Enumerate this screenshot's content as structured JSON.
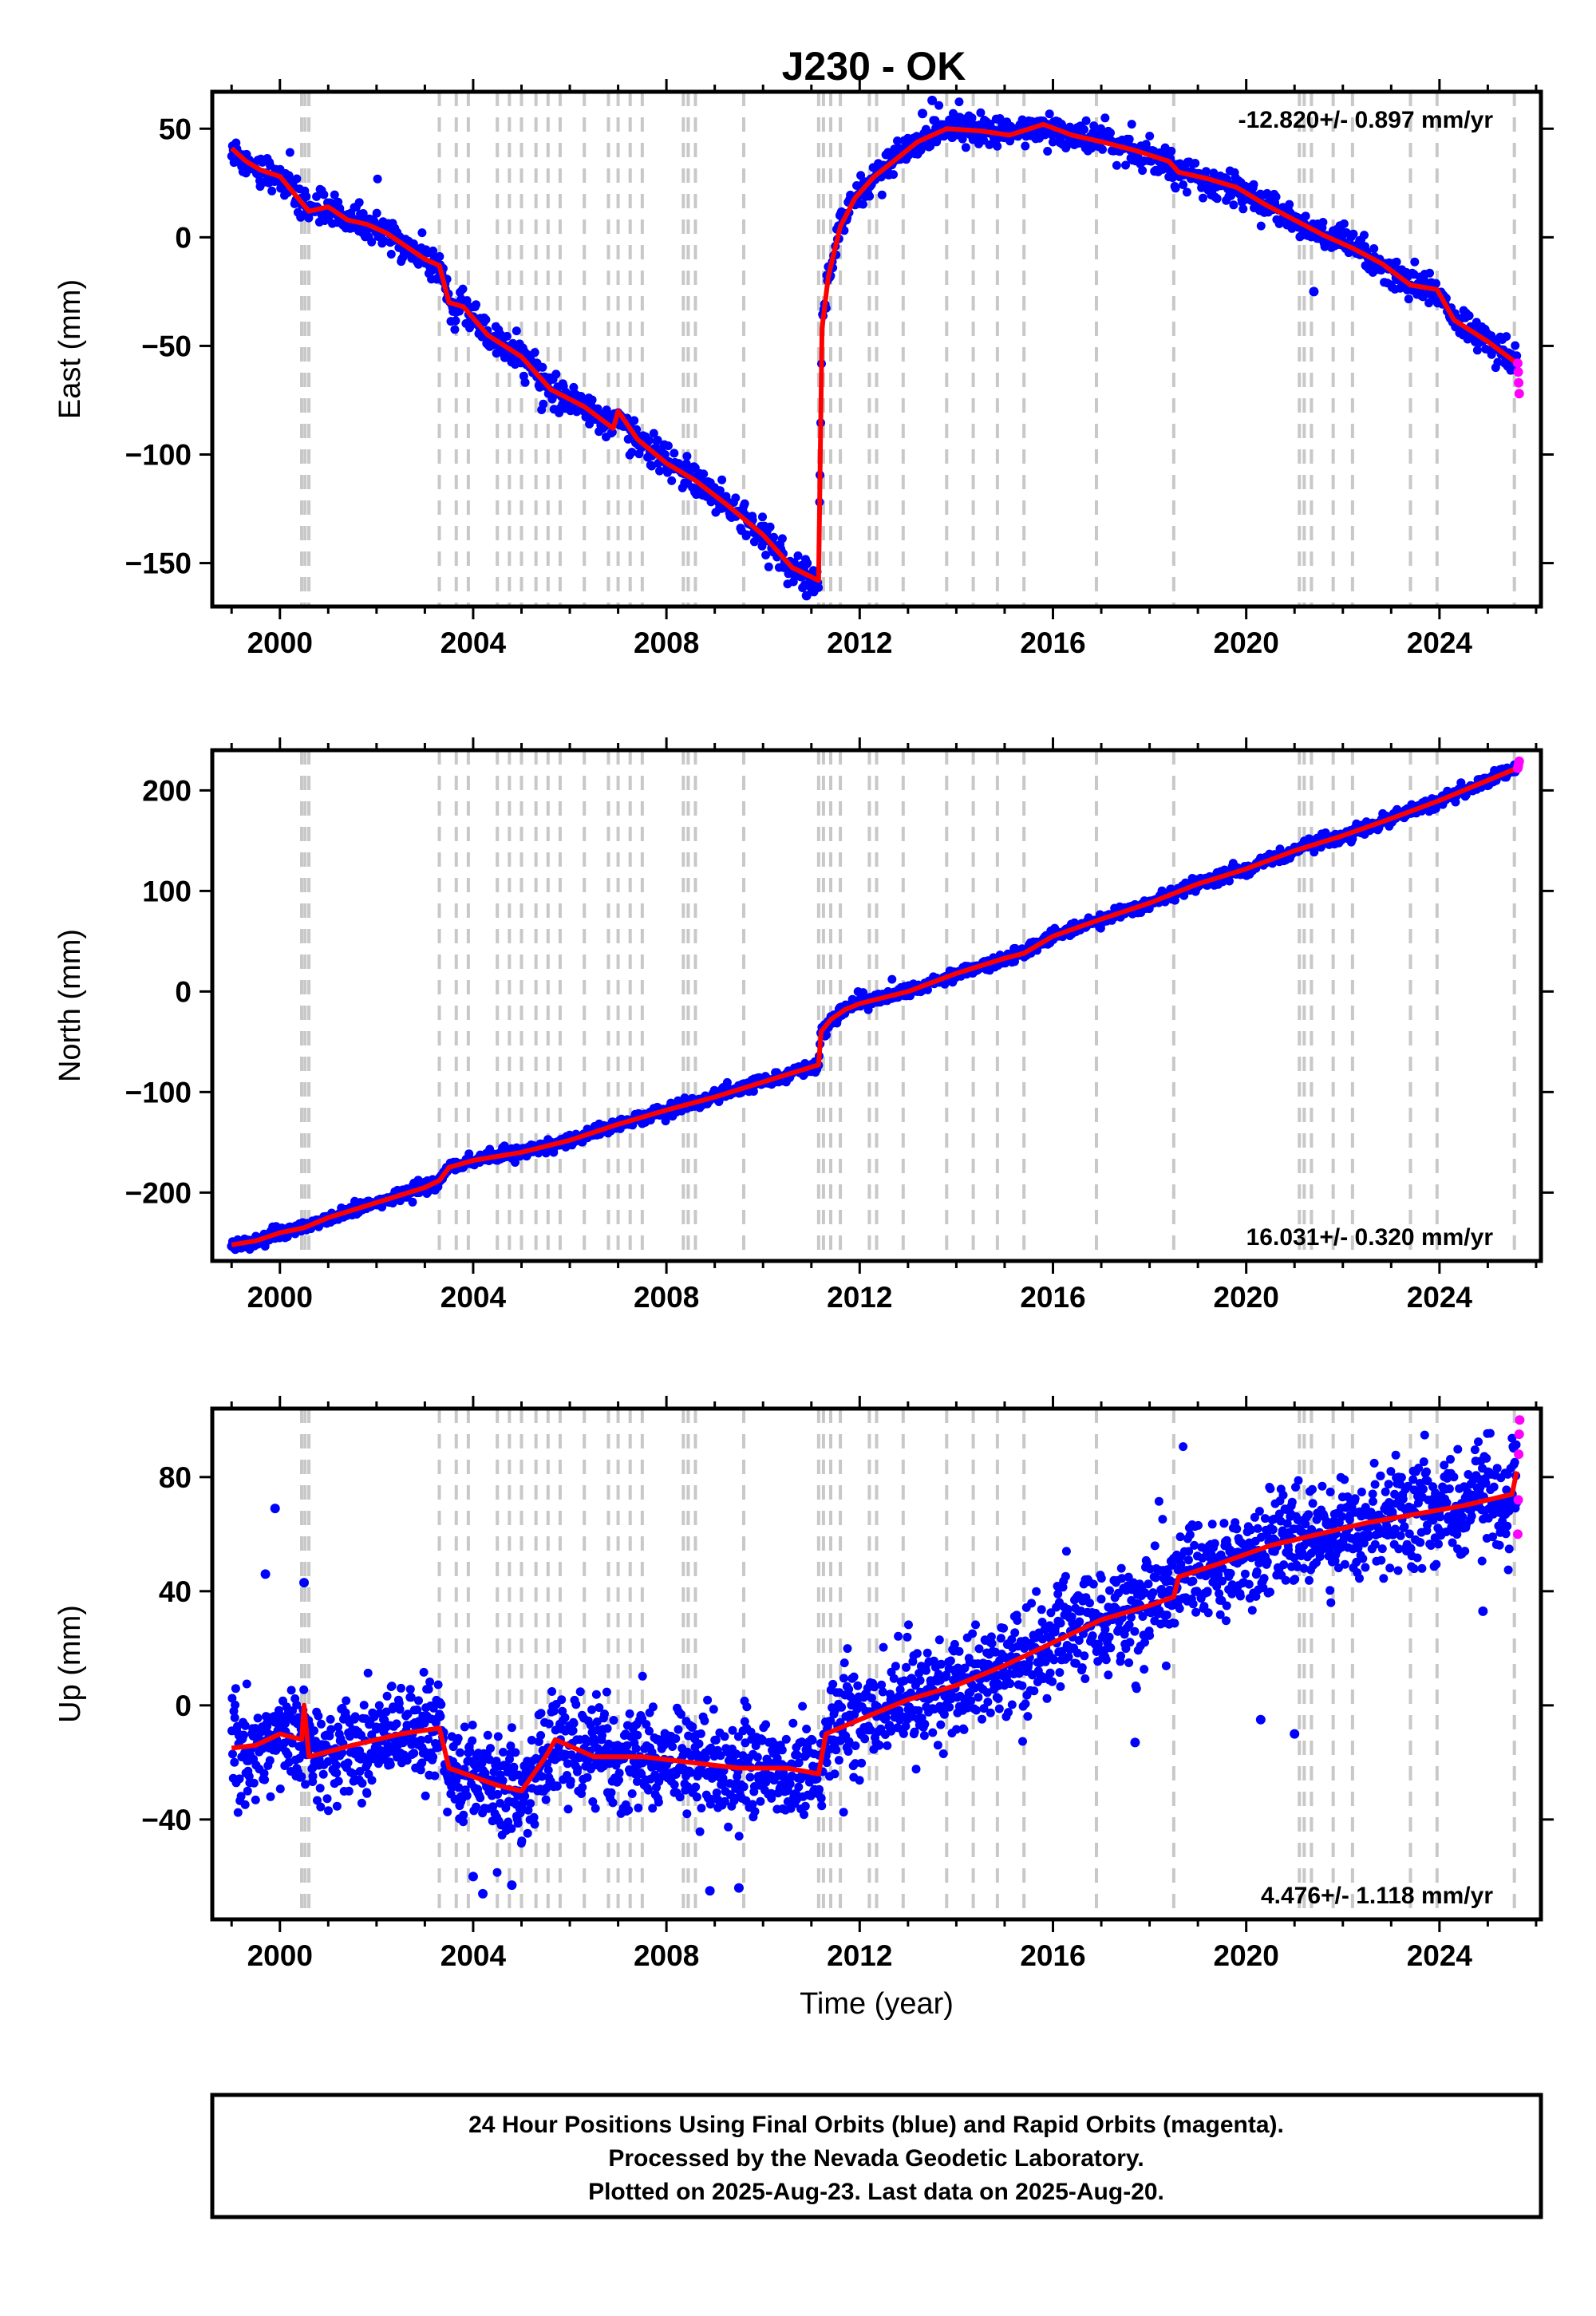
{
  "title": "J230 - OK",
  "colors": {
    "final": "#0000ff",
    "rapid": "#ff00ff",
    "model": "#ff0000",
    "event": "#c8c8c8"
  },
  "footer": {
    "line1": "24 Hour Positions Using Final Orbits (blue) and Rapid Orbits (magenta).",
    "line2": "Processed by the Nevada Geodetic Laboratory.",
    "line3": "Plotted on 2025-Aug-23. Last data on 2025-Aug-20."
  },
  "chart_data": [
    {
      "type": "scatter",
      "name": "east",
      "ylabel": "East (mm)",
      "xlabel": "",
      "rate_label": "-12.820+/- 0.897 mm/yr",
      "rate_position": "top-right",
      "xlim": [
        1998.6,
        2026.1
      ],
      "ylim": [
        -170,
        67
      ],
      "xticks": [
        2000,
        2004,
        2008,
        2012,
        2016,
        2020,
        2024
      ],
      "yticks": [
        -150,
        -100,
        -50,
        0,
        50
      ],
      "event_lines": [
        2000.45,
        2000.52,
        2000.6,
        2003.3,
        2003.65,
        2003.9,
        2004.5,
        2004.75,
        2005.0,
        2005.3,
        2005.55,
        2005.8,
        2006.3,
        2006.8,
        2007.0,
        2007.25,
        2007.5,
        2008.35,
        2008.45,
        2008.6,
        2009.6,
        2011.15,
        2011.25,
        2011.4,
        2011.6,
        2012.2,
        2012.35,
        2012.9,
        2013.8,
        2014.35,
        2014.85,
        2015.4,
        2016.9,
        2018.5,
        2021.1,
        2021.2,
        2021.35,
        2021.8,
        2022.2,
        2023.4,
        2023.95,
        2025.55
      ],
      "model": [
        [
          1999.0,
          41
        ],
        [
          1999.3,
          35
        ],
        [
          1999.6,
          31
        ],
        [
          2000.0,
          28
        ],
        [
          2000.45,
          16
        ],
        [
          2000.6,
          12
        ],
        [
          2001.0,
          14
        ],
        [
          2001.4,
          8
        ],
        [
          2001.8,
          6
        ],
        [
          2002.2,
          2
        ],
        [
          2002.6,
          -4
        ],
        [
          2003.0,
          -10
        ],
        [
          2003.3,
          -13
        ],
        [
          2003.5,
          -30
        ],
        [
          2003.8,
          -32
        ],
        [
          2004.3,
          -45
        ],
        [
          2005.0,
          -55
        ],
        [
          2005.6,
          -70
        ],
        [
          2006.3,
          -78
        ],
        [
          2006.9,
          -88
        ],
        [
          2007.0,
          -80
        ],
        [
          2007.4,
          -93
        ],
        [
          2008.0,
          -104
        ],
        [
          2008.6,
          -112
        ],
        [
          2009.3,
          -124
        ],
        [
          2010.0,
          -137
        ],
        [
          2010.6,
          -152
        ],
        [
          2011.15,
          -158
        ],
        [
          2011.22,
          -42
        ],
        [
          2011.35,
          -18
        ],
        [
          2011.6,
          5
        ],
        [
          2011.9,
          18
        ],
        [
          2012.3,
          28
        ],
        [
          2012.7,
          35
        ],
        [
          2013.2,
          44
        ],
        [
          2013.8,
          50
        ],
        [
          2014.5,
          49
        ],
        [
          2015.1,
          47
        ],
        [
          2015.8,
          52
        ],
        [
          2016.4,
          47
        ],
        [
          2017.0,
          44
        ],
        [
          2017.7,
          40
        ],
        [
          2018.4,
          35
        ],
        [
          2018.6,
          30
        ],
        [
          2019.2,
          27
        ],
        [
          2019.8,
          23
        ],
        [
          2020.4,
          15
        ],
        [
          2021.0,
          8
        ],
        [
          2021.6,
          1
        ],
        [
          2022.2,
          -5
        ],
        [
          2022.8,
          -12
        ],
        [
          2023.4,
          -22
        ],
        [
          2023.95,
          -24
        ],
        [
          2024.3,
          -38
        ],
        [
          2025.0,
          -48
        ],
        [
          2025.6,
          -58
        ]
      ],
      "rapid": [
        [
          2025.62,
          -58
        ],
        [
          2025.63,
          -62
        ],
        [
          2025.64,
          -67
        ],
        [
          2025.65,
          -72
        ]
      ],
      "outliers": [
        [
          2021.4,
          -25
        ],
        [
          2013.5,
          63
        ],
        [
          2013.3,
          57
        ],
        [
          2010.9,
          -165
        ]
      ],
      "scatter_sigma": 3.5,
      "n_points": 1700
    },
    {
      "type": "scatter",
      "name": "north",
      "ylabel": "North (mm)",
      "xlabel": "",
      "rate_label": "16.031+/- 0.320 mm/yr",
      "rate_position": "bottom-right",
      "xlim": [
        1998.6,
        2026.1
      ],
      "ylim": [
        -268,
        240
      ],
      "xticks": [
        2000,
        2004,
        2008,
        2012,
        2016,
        2020,
        2024
      ],
      "yticks": [
        -200,
        -100,
        0,
        100,
        200
      ],
      "event_lines": [
        2000.45,
        2000.52,
        2000.6,
        2003.3,
        2003.65,
        2003.9,
        2004.5,
        2004.75,
        2005.0,
        2005.3,
        2005.55,
        2005.8,
        2006.3,
        2006.8,
        2007.0,
        2007.25,
        2007.5,
        2008.35,
        2008.45,
        2008.6,
        2009.6,
        2011.15,
        2011.25,
        2011.4,
        2011.6,
        2012.2,
        2012.35,
        2012.9,
        2013.8,
        2014.35,
        2014.85,
        2015.4,
        2016.9,
        2018.5,
        2021.1,
        2021.2,
        2021.35,
        2021.8,
        2022.2,
        2023.4,
        2023.95,
        2025.55
      ],
      "model": [
        [
          1999.0,
          -252
        ],
        [
          1999.5,
          -248
        ],
        [
          2000.0,
          -240
        ],
        [
          2000.5,
          -235
        ],
        [
          2001.0,
          -225
        ],
        [
          2002.0,
          -210
        ],
        [
          2003.0,
          -195
        ],
        [
          2003.3,
          -188
        ],
        [
          2003.5,
          -175
        ],
        [
          2004.0,
          -168
        ],
        [
          2005.0,
          -160
        ],
        [
          2006.0,
          -148
        ],
        [
          2007.0,
          -132
        ],
        [
          2008.0,
          -118
        ],
        [
          2009.0,
          -105
        ],
        [
          2010.0,
          -90
        ],
        [
          2011.15,
          -73
        ],
        [
          2011.2,
          -40
        ],
        [
          2011.4,
          -28
        ],
        [
          2011.7,
          -18
        ],
        [
          2012.0,
          -12
        ],
        [
          2013.0,
          0
        ],
        [
          2014.0,
          18
        ],
        [
          2015.0,
          33
        ],
        [
          2015.4,
          38
        ],
        [
          2016.0,
          55
        ],
        [
          2017.0,
          72
        ],
        [
          2018.0,
          88
        ],
        [
          2019.0,
          107
        ],
        [
          2020.0,
          122
        ],
        [
          2021.0,
          140
        ],
        [
          2022.0,
          155
        ],
        [
          2023.0,
          172
        ],
        [
          2024.0,
          190
        ],
        [
          2025.0,
          210
        ],
        [
          2025.6,
          222
        ]
      ],
      "rapid": [
        [
          2025.62,
          222
        ],
        [
          2025.63,
          224
        ],
        [
          2025.64,
          227
        ],
        [
          2025.65,
          229
        ]
      ],
      "outliers": [],
      "scatter_sigma": 3.2,
      "n_points": 1700
    },
    {
      "type": "scatter",
      "name": "up",
      "ylabel": "Up (mm)",
      "xlabel": "Time (year)",
      "rate_label": "4.476+/- 1.118 mm/yr",
      "rate_position": "bottom-right",
      "xlim": [
        1998.6,
        2026.1
      ],
      "ylim": [
        -75,
        104
      ],
      "xticks": [
        2000,
        2004,
        2008,
        2012,
        2016,
        2020,
        2024
      ],
      "yticks": [
        -40,
        0,
        40,
        80
      ],
      "event_lines": [
        2000.45,
        2000.52,
        2000.6,
        2003.3,
        2003.65,
        2003.9,
        2004.5,
        2004.75,
        2005.0,
        2005.3,
        2005.55,
        2005.8,
        2006.3,
        2006.8,
        2007.0,
        2007.25,
        2007.5,
        2008.35,
        2008.45,
        2008.6,
        2009.6,
        2011.15,
        2011.25,
        2011.4,
        2011.6,
        2012.2,
        2012.35,
        2012.9,
        2013.8,
        2014.35,
        2014.85,
        2015.4,
        2016.9,
        2018.5,
        2021.1,
        2021.2,
        2021.35,
        2021.8,
        2022.2,
        2023.4,
        2023.95,
        2025.55
      ],
      "model": [
        [
          1999.0,
          -15
        ],
        [
          1999.5,
          -14
        ],
        [
          2000.0,
          -10
        ],
        [
          2000.45,
          -12
        ],
        [
          2000.5,
          0
        ],
        [
          2000.6,
          -18
        ],
        [
          2001.5,
          -14
        ],
        [
          2002.5,
          -10
        ],
        [
          2003.3,
          -8
        ],
        [
          2003.5,
          -22
        ],
        [
          2004.0,
          -25
        ],
        [
          2004.5,
          -28
        ],
        [
          2005.0,
          -30
        ],
        [
          2005.5,
          -18
        ],
        [
          2005.7,
          -12
        ],
        [
          2006.5,
          -18
        ],
        [
          2007.5,
          -18
        ],
        [
          2008.5,
          -20
        ],
        [
          2009.5,
          -22
        ],
        [
          2010.5,
          -22
        ],
        [
          2011.15,
          -24
        ],
        [
          2011.3,
          -10
        ],
        [
          2012.0,
          -5
        ],
        [
          2013.0,
          2
        ],
        [
          2014.0,
          7
        ],
        [
          2015.0,
          14
        ],
        [
          2016.0,
          22
        ],
        [
          2017.0,
          30
        ],
        [
          2018.0,
          35
        ],
        [
          2018.5,
          38
        ],
        [
          2018.6,
          45
        ],
        [
          2019.5,
          50
        ],
        [
          2020.5,
          56
        ],
        [
          2021.5,
          60
        ],
        [
          2022.5,
          64
        ],
        [
          2023.5,
          67
        ],
        [
          2024.5,
          70
        ],
        [
          2025.5,
          74
        ],
        [
          2025.6,
          82
        ]
      ],
      "rapid": [
        [
          2025.62,
          60
        ],
        [
          2025.63,
          72
        ],
        [
          2025.64,
          88
        ],
        [
          2025.65,
          95
        ],
        [
          2025.66,
          100
        ]
      ],
      "outliers": [
        [
          1999.9,
          69
        ],
        [
          1999.7,
          46
        ],
        [
          2000.5,
          43
        ],
        [
          2004.2,
          -66
        ],
        [
          2004.0,
          -60
        ],
        [
          2004.8,
          -63
        ],
        [
          2009.5,
          -64
        ],
        [
          2008.9,
          -65
        ],
        [
          2017.7,
          -13
        ],
        [
          2020.3,
          -5
        ],
        [
          2021.0,
          -10
        ],
        [
          2024.9,
          33
        ]
      ],
      "scatter_sigma": 9,
      "n_points": 2400
    }
  ]
}
